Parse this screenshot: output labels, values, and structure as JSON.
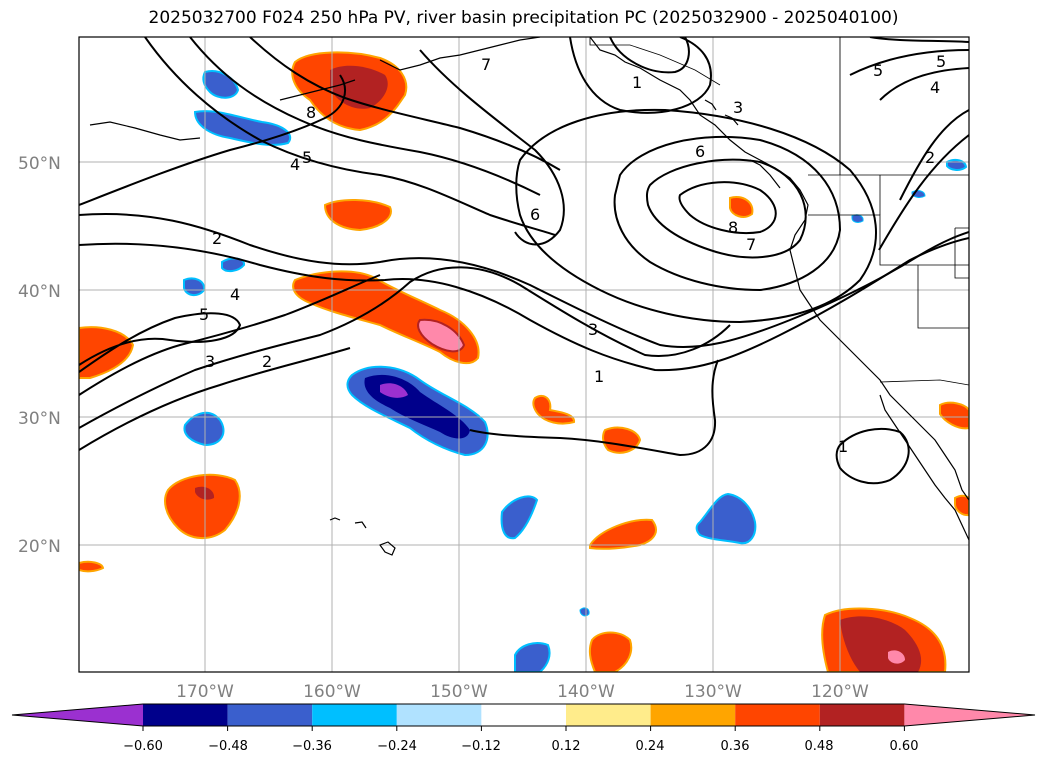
{
  "title": "2025032700 F024 250 hPa PV, river basin precipitation PC (2025032900 - 2025040100)",
  "lat_ticks": [
    "50°N",
    "40°N",
    "30°N",
    "20°N"
  ],
  "lon_ticks": [
    "170°W",
    "160°W",
    "150°W",
    "140°W",
    "130°W",
    "120°W"
  ],
  "colorbar": {
    "ticks": [
      "−0.60",
      "−0.48",
      "−0.36",
      "−0.24",
      "−0.12",
      "0.12",
      "0.24",
      "0.36",
      "0.48",
      "0.60"
    ],
    "colors": [
      "#9b30d0",
      "#00008b",
      "#3a5fcd",
      "#00bfff",
      "#b0e2ff",
      "#ffffff",
      "#ffec8b",
      "#ffa500",
      "#ff4500",
      "#b22222",
      "#ff88aa"
    ]
  },
  "contour_labels": [
    "7",
    "8",
    "5",
    "6",
    "4",
    "1",
    "3",
    "5",
    "4",
    "2",
    "6",
    "5",
    "8",
    "7",
    "2",
    "4",
    "5",
    "3",
    "2",
    "3",
    "1",
    "1"
  ]
}
